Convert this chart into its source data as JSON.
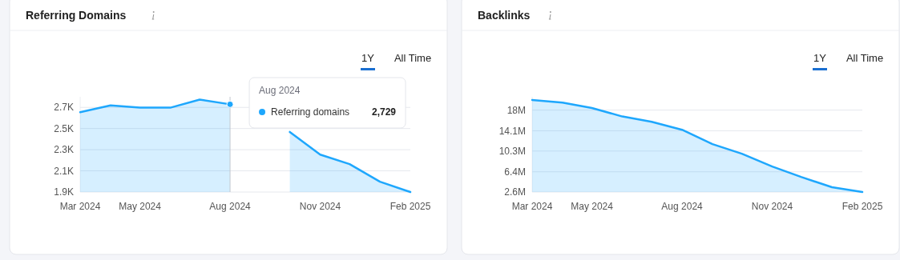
{
  "chart_data": [
    {
      "type": "area",
      "title": "Referring Domains",
      "annotations": [
        "1Y",
        "All Time",
        "Aug 2024",
        "2,729"
      ],
      "x": [
        "2024-03",
        "2024-04",
        "2024-05",
        "2024-06",
        "2024-07",
        "2024-08",
        "2024-09",
        "2024-10",
        "2024-11",
        "2024-12",
        "2025-01",
        "2025-02"
      ],
      "series": [
        {
          "name": "Referring domains",
          "color": "#1ea7fd",
          "values": [
            2654,
            2718,
            2697,
            2697,
            2774,
            2729,
            null,
            2468,
            2254,
            2164,
            1997,
            1900
          ]
        }
      ],
      "xlim": [
        "2024-03",
        "2025-02"
      ],
      "xticks": [
        {
          "value": "2024-03",
          "label": "Mar 2024"
        },
        {
          "value": "2024-05",
          "label": "May 2024"
        },
        {
          "value": "2024-08",
          "label": "Aug 2024"
        },
        {
          "value": "2024-11",
          "label": "Nov 2024"
        },
        {
          "value": "2025-02",
          "label": "Feb 2025"
        }
      ],
      "ylim": [
        1900,
        2800
      ],
      "yticks": [
        {
          "value": 1900,
          "label": "1.9K"
        },
        {
          "value": 2100,
          "label": "2.1K"
        },
        {
          "value": 2300,
          "label": "2.3K"
        },
        {
          "value": 2500,
          "label": "2.5K"
        },
        {
          "value": 2700,
          "label": "2.7K"
        }
      ],
      "ref_lines": [
        {
          "axis": "x",
          "value": "2024-08",
          "color": "#c4c7cf"
        }
      ],
      "grid": "y",
      "legend": "top"
    },
    {
      "type": "area",
      "title": "Backlinks",
      "annotations": [
        "1Y",
        "All Time"
      ],
      "x": [
        "2024-03",
        "2024-04",
        "2024-05",
        "2024-06",
        "2024-07",
        "2024-08",
        "2024-09",
        "2024-10",
        "2024-11",
        "2024-12",
        "2025-01",
        "2025-02"
      ],
      "series": [
        {
          "color": "#1ea7fd",
          "values": [
            19.9,
            19.4,
            18.4,
            16.8,
            15.8,
            14.3,
            11.6,
            9.8,
            7.4,
            5.4,
            3.5,
            2.6
          ]
        }
      ],
      "xlim": [
        "2024-03",
        "2025-02"
      ],
      "xticks": [
        {
          "value": "2024-03",
          "label": "Mar 2024"
        },
        {
          "value": "2024-05",
          "label": "May 2024"
        },
        {
          "value": "2024-08",
          "label": "Aug 2024"
        },
        {
          "value": "2024-11",
          "label": "Nov 2024"
        },
        {
          "value": "2025-02",
          "label": "Feb 2025"
        }
      ],
      "ylim": [
        2.6,
        20.5
      ],
      "yticks": [
        {
          "value": 2.6,
          "label": "2.6M"
        },
        {
          "value": 6.4,
          "label": "6.4M"
        },
        {
          "value": 10.3,
          "label": "10.3M"
        },
        {
          "value": 14.1,
          "label": "14.1M"
        },
        {
          "value": 18,
          "label": "18M"
        }
      ],
      "grid": "y"
    }
  ]
}
